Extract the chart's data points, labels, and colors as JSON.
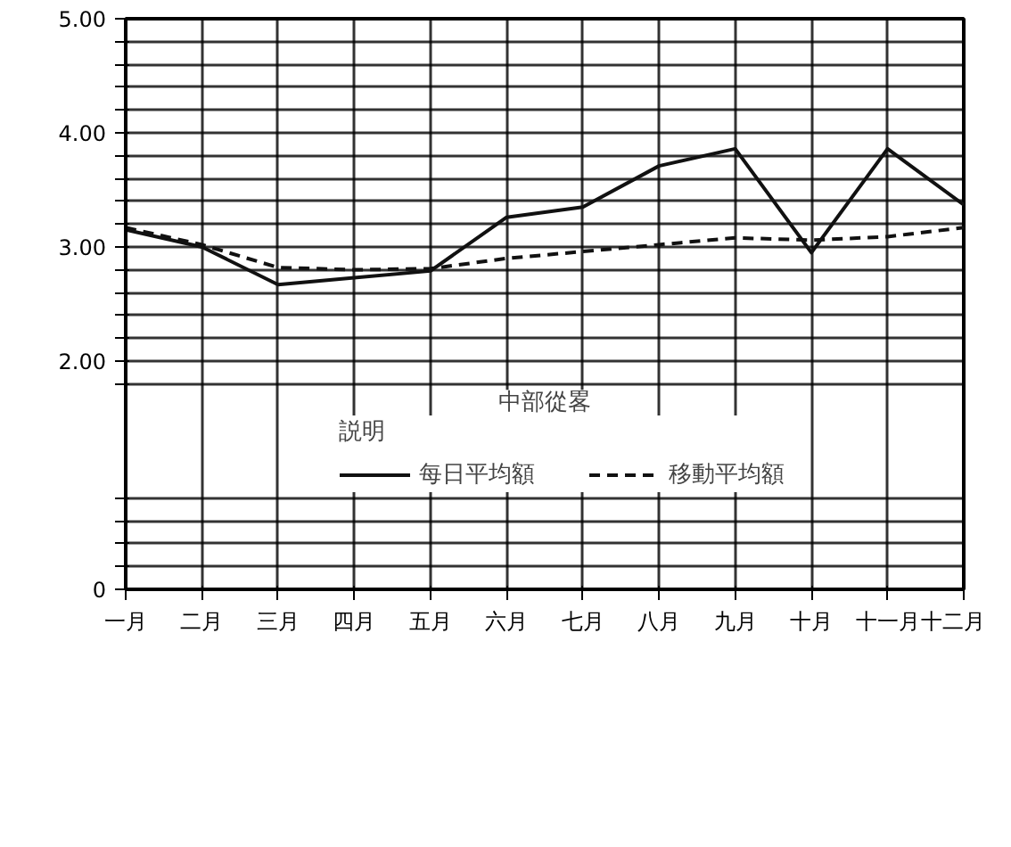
{
  "chart_data": {
    "type": "line",
    "categories": [
      "一月",
      "二月",
      "三月",
      "四月",
      "五月",
      "六月",
      "七月",
      "八月",
      "九月",
      "十月",
      "十一月",
      "十二月"
    ],
    "series": [
      {
        "name": "每日平均額",
        "color": "#111111",
        "line_style": "solid",
        "values": [
          3.15,
          3.0,
          2.67,
          2.73,
          2.79,
          3.26,
          3.35,
          3.71,
          3.86,
          2.95,
          3.86,
          3.37
        ]
      },
      {
        "name": "移動平均額",
        "color": "#111111",
        "line_style": "dashed",
        "values": [
          3.17,
          3.02,
          2.82,
          2.8,
          2.81,
          2.9,
          2.96,
          3.02,
          3.08,
          3.06,
          3.09,
          3.17
        ]
      }
    ],
    "ylim": [
      0,
      5
    ],
    "yticks": [
      {
        "value": 0,
        "label": "0"
      },
      {
        "value": 0.2,
        "label": null
      },
      {
        "value": 0.4,
        "label": null
      },
      {
        "value": 0.6,
        "label": null
      },
      {
        "value": 0.8,
        "label": null
      },
      {
        "value": 1.8,
        "label": null
      },
      {
        "value": 2,
        "label": "2.00"
      },
      {
        "value": 2.2,
        "label": null
      },
      {
        "value": 2.4,
        "label": null
      },
      {
        "value": 2.6,
        "label": null
      },
      {
        "value": 2.8,
        "label": null
      },
      {
        "value": 3,
        "label": "3.00"
      },
      {
        "value": 3.2,
        "label": null
      },
      {
        "value": 3.4,
        "label": null
      },
      {
        "value": 3.6,
        "label": null
      },
      {
        "value": 3.8,
        "label": null
      },
      {
        "value": 4,
        "label": "4.00"
      },
      {
        "value": 4.2,
        "label": null
      },
      {
        "value": 4.4,
        "label": null
      },
      {
        "value": 4.6,
        "label": null
      },
      {
        "value": 4.8,
        "label": null
      },
      {
        "value": 5,
        "label": "5.00"
      }
    ],
    "grid": true,
    "legend": "bottom",
    "legend_title": "説明",
    "marker": "none",
    "annotations": [
      "中部從畧"
    ]
  }
}
